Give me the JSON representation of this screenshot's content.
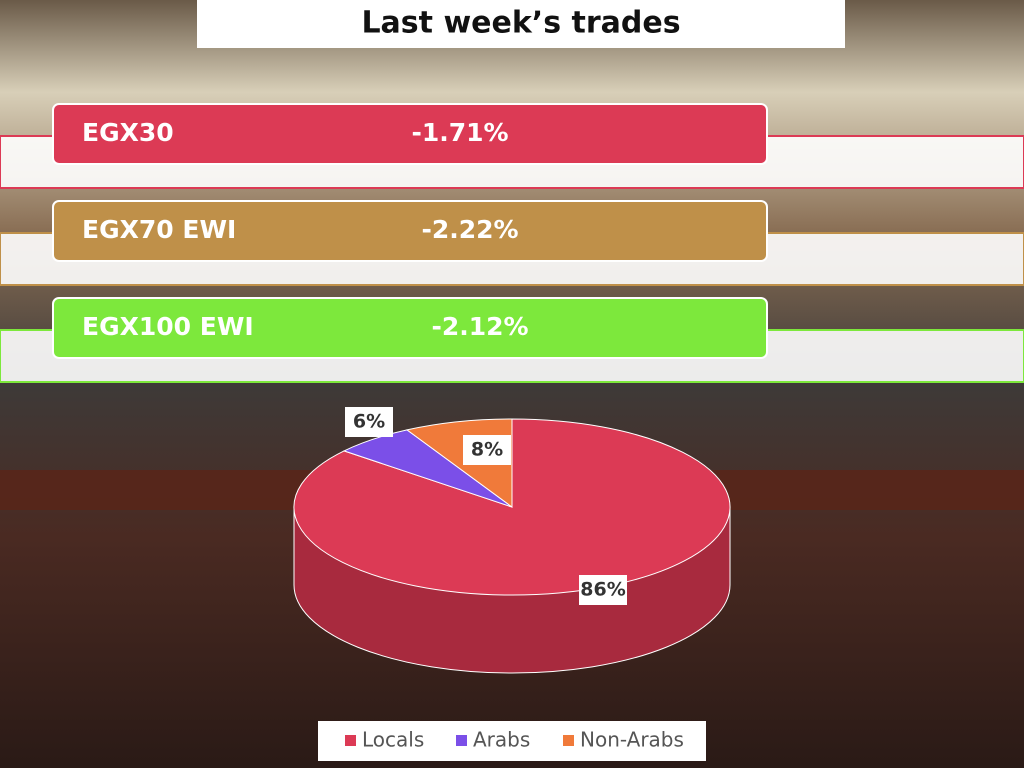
{
  "header": {
    "title": "Last week’s trades"
  },
  "indices": [
    {
      "name": "EGX30",
      "change": "-1.71%",
      "color": "#dc3a55"
    },
    {
      "name": "EGX70 EWI",
      "change": "-2.22%",
      "color": "#bf9049"
    },
    {
      "name": "EGX100 EWI",
      "change": "-2.12%",
      "color": "#7de83c"
    }
  ],
  "chart_data": {
    "type": "pie",
    "categories": [
      "Locals",
      "Arabs",
      "Non-Arabs"
    ],
    "values": [
      86,
      6,
      8
    ],
    "value_labels": [
      "86%",
      "6%",
      "8%"
    ],
    "colors": [
      "#dc3a55",
      "#7b4fe8",
      "#f07a3a"
    ],
    "legend": "bottom"
  }
}
